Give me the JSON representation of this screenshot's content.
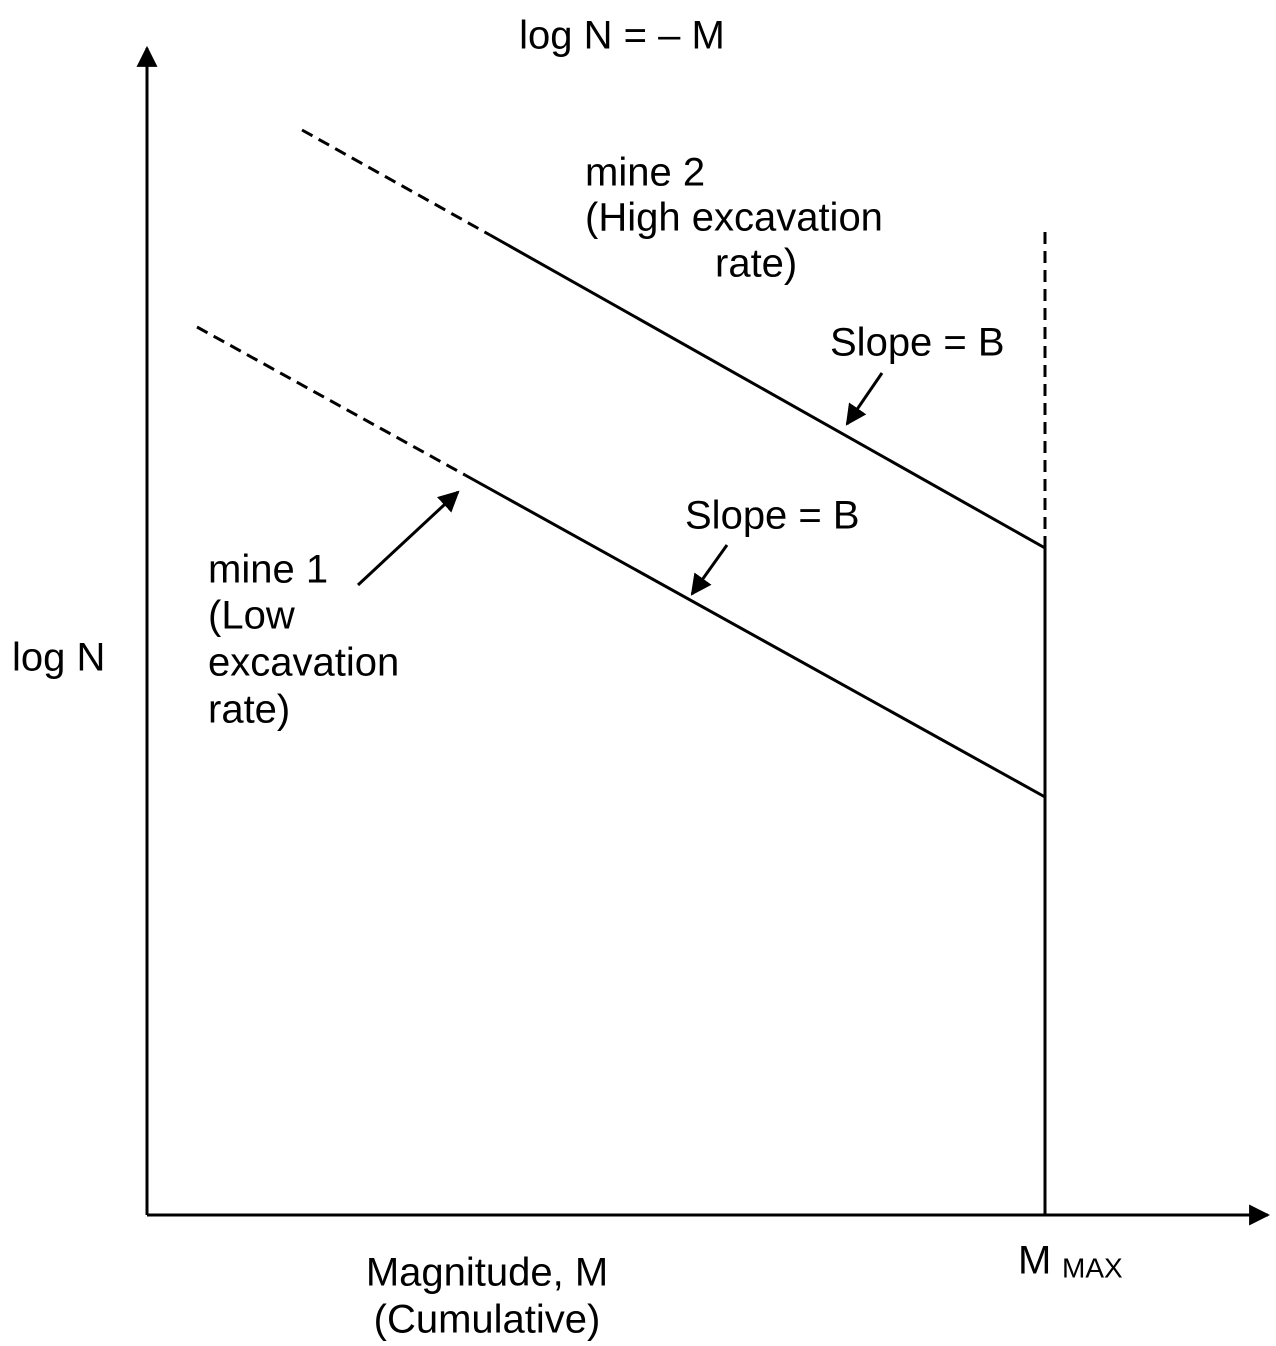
{
  "title": "log N = – M",
  "y_axis_label": "log N",
  "x_axis_label": [
    "Magnitude, M",
    "(Cumulative)"
  ],
  "mmax": {
    "label": "M",
    "subscript": "MAX"
  },
  "mine2": [
    "mine 2",
    "(High excavation",
    "rate)"
  ],
  "mine1": [
    "mine 1",
    "(Low",
    "excavation",
    "rate)"
  ],
  "slope_labels": [
    "Slope = B",
    "Slope = B"
  ]
}
